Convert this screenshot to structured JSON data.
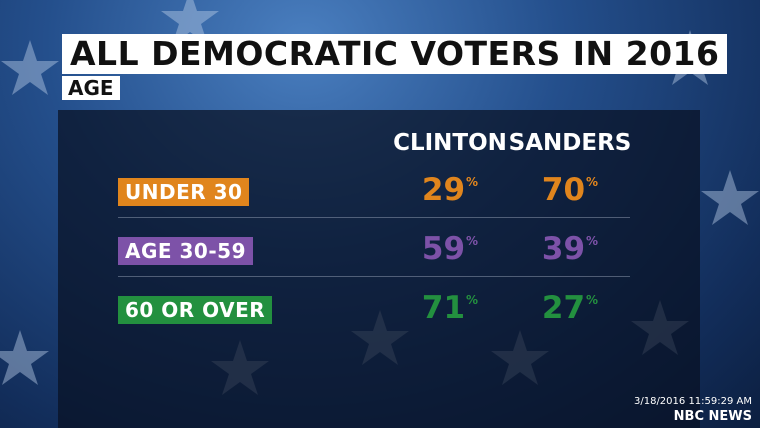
{
  "header": {
    "title": "ALL DEMOCRATIC VOTERS IN 2016",
    "subtitle": "AGE"
  },
  "table": {
    "columns": [
      "CLINTON",
      "SANDERS"
    ],
    "rows": [
      {
        "label": "UNDER 30",
        "color": "#e0851d",
        "cells": [
          "29%",
          "70%"
        ]
      },
      {
        "label": "AGE 30-59",
        "color": "#7d52a8",
        "cells": [
          "59%",
          "39%"
        ]
      },
      {
        "label": "60 OR OVER",
        "color": "#23903f",
        "cells": [
          "71%",
          "27%"
        ]
      }
    ]
  },
  "footer": {
    "timestamp": "3/18/2016 11:59:29 AM",
    "logo": "NBC NEWS"
  }
}
